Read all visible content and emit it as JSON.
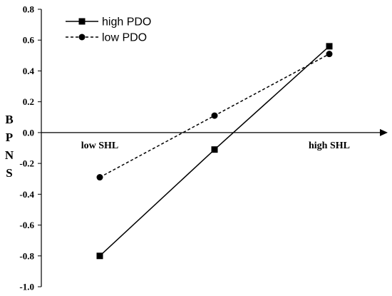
{
  "chart_data": {
    "type": "line",
    "ylabel": "BPNS",
    "xlabel": "",
    "categories": [
      "low SHL",
      "",
      "high SHL"
    ],
    "x": [
      0,
      1,
      2
    ],
    "ylim": [
      -1.0,
      0.8
    ],
    "yticks": [
      "0.8",
      "0.6",
      "0.4",
      "0.2",
      "0.0",
      "-0.2",
      "-0.4",
      "-0.6",
      "-0.8",
      "-1.0"
    ],
    "grid": false,
    "legend_position": "top-left",
    "series": [
      {
        "name": "high PDO",
        "line_style": "solid",
        "marker": "square",
        "color": "#000000",
        "values": [
          -0.8,
          -0.11,
          0.56
        ]
      },
      {
        "name": "low  PDO",
        "line_style": "dashed",
        "marker": "circle",
        "color": "#000000",
        "values": [
          -0.29,
          0.11,
          0.51
        ]
      }
    ]
  }
}
